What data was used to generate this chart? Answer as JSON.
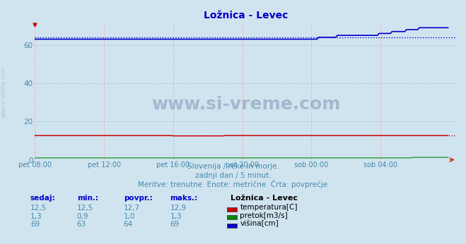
{
  "title": "Ložnica - Levec",
  "bg_color": "#d0e4f0",
  "plot_bg_color": "#d0e4f0",
  "title_color": "#0000cc",
  "title_fontsize": 10,
  "x_label_color": "#4488aa",
  "y_label_color": "#4488aa",
  "x_tick_labels": [
    "pet 08:00",
    "pet 12:00",
    "pet 16:00",
    "pet 20:00",
    "sob 00:00",
    "sob 04:00"
  ],
  "x_tick_positions": [
    0,
    48,
    96,
    144,
    192,
    240
  ],
  "y_ticks": [
    0,
    20,
    40,
    60
  ],
  "ylim": [
    0,
    72
  ],
  "xlim_max": 293,
  "n_points": 288,
  "temp_avg": 12.7,
  "visina_avg": 64,
  "temp_color": "#cc0000",
  "pretok_color": "#008800",
  "visina_color": "#0000cc",
  "grid_v_color": "#ffaaaa",
  "grid_h_color": "#aaccdd",
  "watermark": "www.si-vreme.com",
  "watermark_color": "#1a3a6a",
  "watermark_alpha": 0.25,
  "subtitle1": "Slovenija / reke in morje.",
  "subtitle2": "zadnji dan / 5 minut.",
  "subtitle3": "Meritve: trenutne  Enote: metrične  Črta: povprečje",
  "subtitle_color": "#4488aa",
  "subtitle_fontsize": 7.5,
  "table_headers": [
    "sedaj:",
    "min.:",
    "povpr.:",
    "maks.:"
  ],
  "table_header_color": "#0000cc",
  "table_value_color": "#4488aa",
  "station_label": "Ložnica - Levec",
  "legend_items": [
    "temperatura[C]",
    "pretok[m3/s]",
    "višina[cm]"
  ],
  "legend_colors": [
    "#cc0000",
    "#008800",
    "#0000cc"
  ],
  "rows": [
    [
      "12,5",
      "12,5",
      "12,7",
      "12,9"
    ],
    [
      "1,3",
      "0,9",
      "1,0",
      "1,3"
    ],
    [
      "69",
      "63",
      "64",
      "69"
    ]
  ],
  "side_text": "www.si-vreme.com",
  "side_text_color": "#99bbcc"
}
